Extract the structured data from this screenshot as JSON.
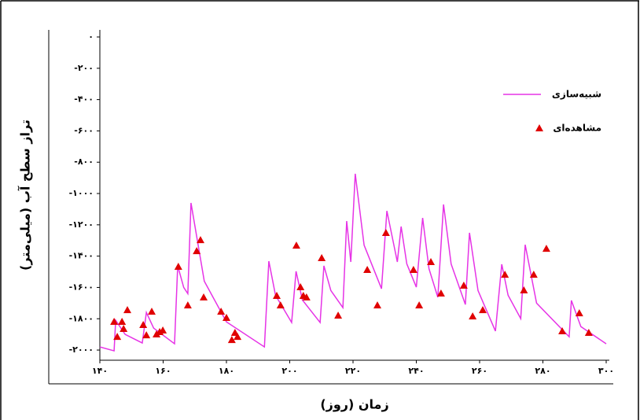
{
  "chart_data": {
    "type": "line",
    "xlabel": "زمان (روز)",
    "ylabel": "تراز سطح آب (میلی‌متر)",
    "xlim": [
      140,
      300
    ],
    "ylim": [
      -2065,
      0
    ],
    "xticks": [
      {
        "value": 140,
        "label": "۱۴۰"
      },
      {
        "value": 160,
        "label": "۱۶۰"
      },
      {
        "value": 180,
        "label": "۱۸۰"
      },
      {
        "value": 200,
        "label": "۲۰۰"
      },
      {
        "value": 220,
        "label": "۲۲۰"
      },
      {
        "value": 240,
        "label": "۲۴۰"
      },
      {
        "value": 260,
        "label": "۲۶۰"
      },
      {
        "value": 280,
        "label": "۲۸۰"
      },
      {
        "value": 300,
        "label": "۳۰۰"
      }
    ],
    "yticks": [
      {
        "value": 0,
        "label": "۰"
      },
      {
        "value": -200,
        "label": "-۲۰۰"
      },
      {
        "value": -400,
        "label": "-۴۰۰"
      },
      {
        "value": -600,
        "label": "-۶۰۰"
      },
      {
        "value": -800,
        "label": "-۸۰۰"
      },
      {
        "value": -1000,
        "label": "-۱۰۰۰"
      },
      {
        "value": -1200,
        "label": "-۱۲۰۰"
      },
      {
        "value": -1400,
        "label": "-۱۴۰۰"
      },
      {
        "value": -1600,
        "label": "-۱۶۰۰"
      },
      {
        "value": -1800,
        "label": "-۱۸۰۰"
      },
      {
        "value": -2000,
        "label": "-۲۰۰۰"
      }
    ],
    "legend": "upper right",
    "series": [
      {
        "name": "شبیه‌سازی",
        "color": "#e633e6",
        "style": "line",
        "x": [
          140,
          144.5,
          145,
          148,
          153.4,
          154.7,
          157,
          163.6,
          164.6,
          166.5,
          167.8,
          168.8,
          173,
          180,
          192,
          193.4,
          195.5,
          200.6,
          202,
          204,
          209.6,
          210.8,
          213,
          216.8,
          218,
          219.3,
          220.7,
          223.5,
          229,
          230.7,
          234,
          235.2,
          237,
          240,
          242,
          244,
          246.8,
          248.6,
          251,
          255.5,
          256.8,
          259.5,
          265,
          267,
          269,
          273,
          274.4,
          278,
          288.3,
          289,
          292,
          300
        ],
        "values": [
          -1980,
          -2005,
          -1810,
          -1900,
          -1955,
          -1760,
          -1860,
          -1960,
          -1462,
          -1600,
          -1640,
          -1060,
          -1560,
          -1820,
          -1980,
          -1432,
          -1650,
          -1824,
          -1497,
          -1680,
          -1824,
          -1462,
          -1620,
          -1729,
          -1176,
          -1437,
          -874,
          -1330,
          -1608,
          -1111,
          -1437,
          -1211,
          -1450,
          -1598,
          -1156,
          -1480,
          -1663,
          -1070,
          -1450,
          -1709,
          -1251,
          -1620,
          -1879,
          -1452,
          -1650,
          -1799,
          -1327,
          -1700,
          -1915,
          -1683,
          -1850,
          -1960
        ]
      },
      {
        "name": "مشاهده‌ای",
        "color": "#e00000",
        "style": "triangle",
        "x": [
          144.5,
          147,
          145.5,
          147.5,
          148.7,
          153.7,
          154.7,
          156.4,
          157.9,
          158.9,
          159.9,
          164.8,
          167.8,
          170.6,
          171.8,
          172.8,
          178.3,
          180,
          181.7,
          182.7,
          183.5,
          195.9,
          197.1,
          202.1,
          203.4,
          204.3,
          205.3,
          210.1,
          215.3,
          224.5,
          227.7,
          230.4,
          239.1,
          240.9,
          244.6,
          247.8,
          255,
          257.8,
          261,
          268,
          274,
          277.1,
          281.1,
          286.1,
          291.5,
          294.5
        ],
        "values": [
          -1819,
          -1819,
          -1915,
          -1864,
          -1744,
          -1839,
          -1905,
          -1754,
          -1899,
          -1884,
          -1874,
          -1467,
          -1714,
          -1367,
          -1297,
          -1663,
          -1754,
          -1794,
          -1935,
          -1889,
          -1915,
          -1653,
          -1714,
          -1332,
          -1598,
          -1653,
          -1663,
          -1412,
          -1779,
          -1487,
          -1714,
          -1251,
          -1487,
          -1714,
          -1437,
          -1638,
          -1588,
          -1784,
          -1744,
          -1518,
          -1618,
          -1518,
          -1352,
          -1879,
          -1764,
          -1889
        ]
      }
    ]
  }
}
